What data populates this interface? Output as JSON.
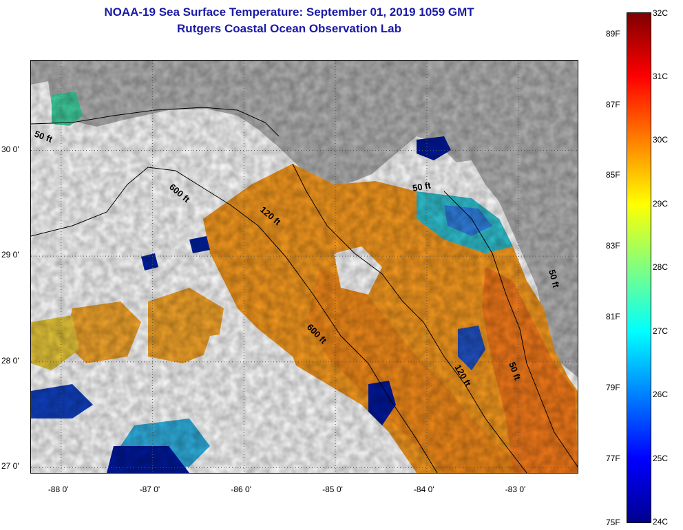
{
  "title": {
    "line1": "NOAA-19 Sea Surface Temperature:  September 01, 2019 1059 GMT",
    "line2": "Rutgers Coastal Ocean Observation Lab"
  },
  "map": {
    "lon_range": [
      -88.33,
      -82.35
    ],
    "lat_range": [
      26.95,
      30.85
    ],
    "lon_ticks": [
      {
        "value": -88,
        "label": "-88 0'"
      },
      {
        "value": -87,
        "label": "-87 0'"
      },
      {
        "value": -86,
        "label": "-86 0'"
      },
      {
        "value": -85,
        "label": "-85 0'"
      },
      {
        "value": -84,
        "label": "-84 0'"
      },
      {
        "value": -83,
        "label": "-83 0'"
      }
    ],
    "lat_ticks": [
      {
        "value": 30,
        "label": "30 0'"
      },
      {
        "value": 29,
        "label": "29 0'"
      },
      {
        "value": 28,
        "label": "28 0'"
      },
      {
        "value": 27,
        "label": "27 0'"
      }
    ],
    "depth_labels": [
      "50 ft",
      "600 ft",
      "120 ft",
      "600 ft",
      "50 ft",
      "120 ft",
      "50 ft",
      "50 ft"
    ],
    "colors": {
      "land": "#b4b4b4",
      "cloud": "#ffffff",
      "grid": "#555555"
    }
  },
  "colorbar": {
    "celsius": [
      {
        "value": 32,
        "label": "32C"
      },
      {
        "value": 31,
        "label": "31C"
      },
      {
        "value": 30,
        "label": "30C"
      },
      {
        "value": 29,
        "label": "29C"
      },
      {
        "value": 28,
        "label": "28C"
      },
      {
        "value": 27,
        "label": "27C"
      },
      {
        "value": 26,
        "label": "26C"
      },
      {
        "value": 25,
        "label": "25C"
      },
      {
        "value": 24,
        "label": "24C"
      }
    ],
    "fahrenheit": [
      {
        "value": 89,
        "label": "89F"
      },
      {
        "value": 87,
        "label": "87F"
      },
      {
        "value": 85,
        "label": "85F"
      },
      {
        "value": 83,
        "label": "83F"
      },
      {
        "value": 81,
        "label": "81F"
      },
      {
        "value": 79,
        "label": "79F"
      },
      {
        "value": 77,
        "label": "77F"
      },
      {
        "value": 75,
        "label": "75F"
      }
    ],
    "range_c": [
      24,
      32
    ]
  }
}
